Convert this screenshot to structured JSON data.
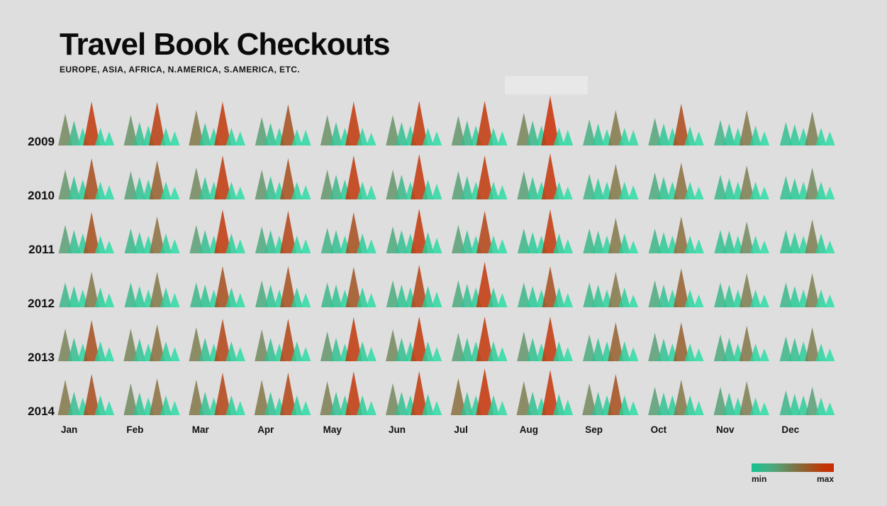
{
  "page": {
    "background": "#dedede"
  },
  "header": {
    "title": "Travel Book Checkouts",
    "subtitle": "EUROPE, ASIA, AFRICA, N.AMERICA, S.AMERICA, ETC."
  },
  "legend": {
    "min_label": "min",
    "max_label": "max",
    "gradient_colors": [
      "#13c38e",
      "#53a274",
      "#77784a",
      "#935d2a",
      "#bd3a0a",
      "#cc2b03"
    ]
  },
  "chart_data": {
    "type": "small-multiples-triangles",
    "title": "Travel Book Checkouts",
    "subtitle": "EUROPE, ASIA, AFRICA, N.AMERICA, S.AMERICA, ETC.",
    "rows": [
      "2009",
      "2010",
      "2011",
      "2012",
      "2013",
      "2014"
    ],
    "columns": [
      "Jan",
      "Feb",
      "Mar",
      "Apr",
      "May",
      "Jun",
      "Jul",
      "Aug",
      "Sep",
      "Oct",
      "Nov",
      "Dec"
    ],
    "cell_series": [
      "Europe",
      "Asia",
      "Africa",
      "N.America",
      "S.America",
      "Etc."
    ],
    "encoding": "each month-year cell shows 6 triangles; triangle height and color both encode relative checkout volume from min (teal) to max (red)",
    "legend": {
      "min_label": "min",
      "max_label": "max"
    },
    "color_stops": [
      [
        16,
        "#31dfa9"
      ],
      [
        24,
        "#2dd6a1"
      ],
      [
        30,
        "#2cc997"
      ],
      [
        34,
        "#37bb8d"
      ],
      [
        38,
        "#4daa7e"
      ],
      [
        42,
        "#65966b"
      ],
      [
        46,
        "#78855a"
      ],
      [
        50,
        "#837849"
      ],
      [
        54,
        "#906535"
      ],
      [
        58,
        "#a54e1d"
      ],
      [
        62,
        "#c0390c"
      ],
      [
        72,
        "#cc2d04"
      ]
    ],
    "values": [
      [
        [
          45,
          35,
          25,
          62,
          25,
          20
        ],
        [
          43,
          33,
          28,
          61,
          25,
          20
        ],
        [
          50,
          32,
          25,
          62,
          25,
          20
        ],
        [
          40,
          32,
          25,
          58,
          23,
          22
        ],
        [
          43,
          33,
          25,
          62,
          25,
          18
        ],
        [
          43,
          33,
          28,
          63,
          25,
          20
        ],
        [
          42,
          35,
          28,
          63,
          25,
          20
        ],
        [
          46,
          35,
          28,
          70,
          25,
          22
        ],
        [
          37,
          31,
          23,
          50,
          25,
          22
        ],
        [
          39,
          31,
          25,
          59,
          27,
          20
        ],
        [
          36,
          31,
          25,
          50,
          28,
          20
        ],
        [
          33,
          30,
          25,
          48,
          25,
          20
        ]
      ],
      [
        [
          42,
          33,
          28,
          58,
          25,
          20
        ],
        [
          40,
          32,
          28,
          55,
          25,
          18
        ],
        [
          45,
          32,
          25,
          62,
          25,
          18
        ],
        [
          42,
          33,
          25,
          58,
          25,
          20
        ],
        [
          42,
          35,
          28,
          62,
          25,
          20
        ],
        [
          42,
          35,
          25,
          64,
          28,
          22
        ],
        [
          40,
          33,
          25,
          62,
          25,
          20
        ],
        [
          40,
          32,
          25,
          65,
          25,
          18
        ],
        [
          36,
          30,
          25,
          50,
          25,
          20
        ],
        [
          38,
          32,
          25,
          52,
          25,
          18
        ],
        [
          35,
          30,
          25,
          48,
          25,
          18
        ],
        [
          33,
          30,
          25,
          45,
          25,
          18
        ]
      ],
      [
        [
          40,
          33,
          28,
          58,
          25,
          18
        ],
        [
          35,
          30,
          25,
          52,
          28,
          20
        ],
        [
          40,
          33,
          25,
          62,
          28,
          20
        ],
        [
          38,
          33,
          25,
          60,
          25,
          20
        ],
        [
          36,
          33,
          25,
          58,
          28,
          20
        ],
        [
          38,
          33,
          28,
          63,
          30,
          22
        ],
        [
          40,
          33,
          25,
          60,
          25,
          20
        ],
        [
          35,
          30,
          25,
          62,
          28,
          20
        ],
        [
          35,
          32,
          25,
          50,
          28,
          18
        ],
        [
          35,
          30,
          25,
          52,
          25,
          20
        ],
        [
          33,
          32,
          25,
          45,
          25,
          18
        ],
        [
          33,
          30,
          25,
          48,
          28,
          18
        ]
      ],
      [
        [
          35,
          30,
          25,
          50,
          28,
          20
        ],
        [
          35,
          30,
          25,
          50,
          28,
          20
        ],
        [
          35,
          32,
          25,
          58,
          28,
          20
        ],
        [
          38,
          32,
          25,
          58,
          28,
          20
        ],
        [
          35,
          32,
          25,
          57,
          28,
          20
        ],
        [
          38,
          32,
          28,
          60,
          30,
          22
        ],
        [
          38,
          33,
          28,
          64,
          28,
          20
        ],
        [
          35,
          30,
          25,
          58,
          28,
          20
        ],
        [
          35,
          32,
          25,
          50,
          28,
          18
        ],
        [
          38,
          32,
          25,
          55,
          25,
          18
        ],
        [
          35,
          32,
          25,
          48,
          25,
          18
        ],
        [
          35,
          30,
          25,
          48,
          25,
          18
        ]
      ],
      [
        [
          46,
          33,
          25,
          58,
          28,
          20
        ],
        [
          46,
          32,
          25,
          52,
          28,
          20
        ],
        [
          48,
          33,
          25,
          60,
          28,
          20
        ],
        [
          45,
          33,
          25,
          60,
          28,
          20
        ],
        [
          42,
          33,
          25,
          62,
          28,
          20
        ],
        [
          45,
          33,
          28,
          63,
          28,
          20
        ],
        [
          40,
          33,
          28,
          63,
          28,
          20
        ],
        [
          42,
          33,
          25,
          63,
          28,
          20
        ],
        [
          38,
          33,
          28,
          55,
          28,
          20
        ],
        [
          40,
          32,
          25,
          55,
          25,
          18
        ],
        [
          38,
          33,
          25,
          50,
          25,
          18
        ],
        [
          35,
          33,
          28,
          48,
          25,
          18
        ]
      ],
      [
        [
          50,
          33,
          25,
          58,
          28,
          20
        ],
        [
          45,
          32,
          25,
          52,
          28,
          20
        ],
        [
          50,
          33,
          25,
          60,
          28,
          20
        ],
        [
          50,
          33,
          25,
          60,
          28,
          20
        ],
        [
          48,
          33,
          28,
          62,
          28,
          20
        ],
        [
          45,
          33,
          28,
          62,
          30,
          20
        ],
        [
          52,
          33,
          28,
          66,
          28,
          20
        ],
        [
          48,
          33,
          25,
          64,
          30,
          22
        ],
        [
          45,
          33,
          28,
          58,
          28,
          20
        ],
        [
          40,
          32,
          28,
          50,
          28,
          20
        ],
        [
          40,
          32,
          25,
          48,
          25,
          18
        ],
        [
          35,
          30,
          28,
          40,
          25,
          18
        ]
      ]
    ]
  }
}
